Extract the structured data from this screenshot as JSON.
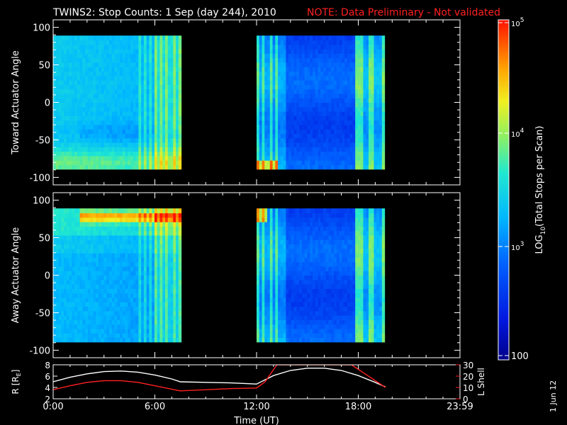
{
  "header": {
    "title": "TWINS2: Stop Counts:  1 Sep (day 244), 2010",
    "note": "NOTE: Data Preliminary - Not validated",
    "note_color": "#ff2020"
  },
  "footer": {
    "date_stamp": "1 Jun 12"
  },
  "colors": {
    "background": "#000000",
    "axes": "#ffffff",
    "r_line": "#ffffff",
    "l_shell_line": "#ff2020"
  },
  "chart_data": [
    {
      "type": "heatmap",
      "title": "",
      "ylabel": "Toward Actuator Angle",
      "xlim": [
        0,
        24
      ],
      "ylim": [
        -110,
        110
      ],
      "y_ticks": [
        -100,
        -50,
        0,
        50,
        100
      ],
      "x_ticks": [
        "0:00",
        "6:00",
        "12:00",
        "18:00",
        "23:59"
      ],
      "data_blocks": [
        {
          "x_range": [
            0.0,
            7.55
          ],
          "y_range": [
            -89,
            89
          ]
        },
        {
          "x_range": [
            12.0,
            19.55
          ],
          "y_range": [
            -89,
            89
          ]
        }
      ],
      "colorscale": "log",
      "grid": false
    },
    {
      "type": "heatmap",
      "title": "",
      "ylabel": "Away Actuator Angle",
      "xlim": [
        0,
        24
      ],
      "ylim": [
        -110,
        110
      ],
      "y_ticks": [
        -100,
        -50,
        0,
        50,
        100
      ],
      "x_ticks": [
        "0:00",
        "6:00",
        "12:00",
        "18:00",
        "23:59"
      ],
      "data_blocks": [
        {
          "x_range": [
            0.0,
            7.55
          ],
          "y_range": [
            -89,
            89
          ]
        },
        {
          "x_range": [
            12.0,
            19.55
          ],
          "y_range": [
            -89,
            89
          ]
        }
      ],
      "colorscale": "log",
      "grid": false
    },
    {
      "type": "line",
      "xlabel": "Time (UT)",
      "ylabel": "R [R",
      "ylabel_sub": "E",
      "ylabel_close": "]",
      "ylabel_right": "L Shell",
      "xlim": [
        0,
        24
      ],
      "ylim": [
        2,
        8
      ],
      "ylim_right": [
        0,
        30
      ],
      "y_ticks": [
        2,
        4,
        6,
        8
      ],
      "y_ticks_right": [
        0,
        10,
        20,
        30
      ],
      "x_ticks": [
        "0:00",
        "6:00",
        "12:00",
        "18:00",
        "23:59"
      ],
      "series": [
        {
          "color": "#ffffff",
          "x": [
            0,
            1,
            2,
            3,
            4,
            5,
            6,
            7,
            7.5,
            9,
            10.5,
            12,
            13,
            14,
            15,
            16,
            17,
            18,
            19,
            19.6
          ],
          "y": [
            5.0,
            5.8,
            6.4,
            6.8,
            6.9,
            6.7,
            6.2,
            5.5,
            5.0,
            4.9,
            4.8,
            4.6,
            6.1,
            7.0,
            7.4,
            7.4,
            7.0,
            6.1,
            4.9,
            4.1
          ]
        },
        {
          "color": "#ff2020",
          "axis": "right",
          "x": [
            0,
            1,
            2,
            3,
            4,
            5,
            6,
            7,
            7.5,
            9,
            10.5,
            12,
            12.5,
            13.2,
            17.6,
            18.4,
            19.6
          ],
          "y": [
            8,
            11.5,
            14.5,
            16,
            16,
            14.5,
            11.5,
            8.5,
            7,
            8,
            9,
            9.5,
            15,
            30,
            30,
            22,
            10
          ]
        }
      ]
    }
  ],
  "colorbar": {
    "label_prefix": "LOG",
    "label_sub": "10",
    "label_suffix": "(Total Stops per Scan)",
    "ticks": [
      {
        "base": "10",
        "exp": "5"
      },
      {
        "base": "10",
        "exp": "4"
      },
      {
        "base": "10",
        "exp": "3"
      },
      {
        "base": "100",
        "exp": ""
      }
    ]
  }
}
